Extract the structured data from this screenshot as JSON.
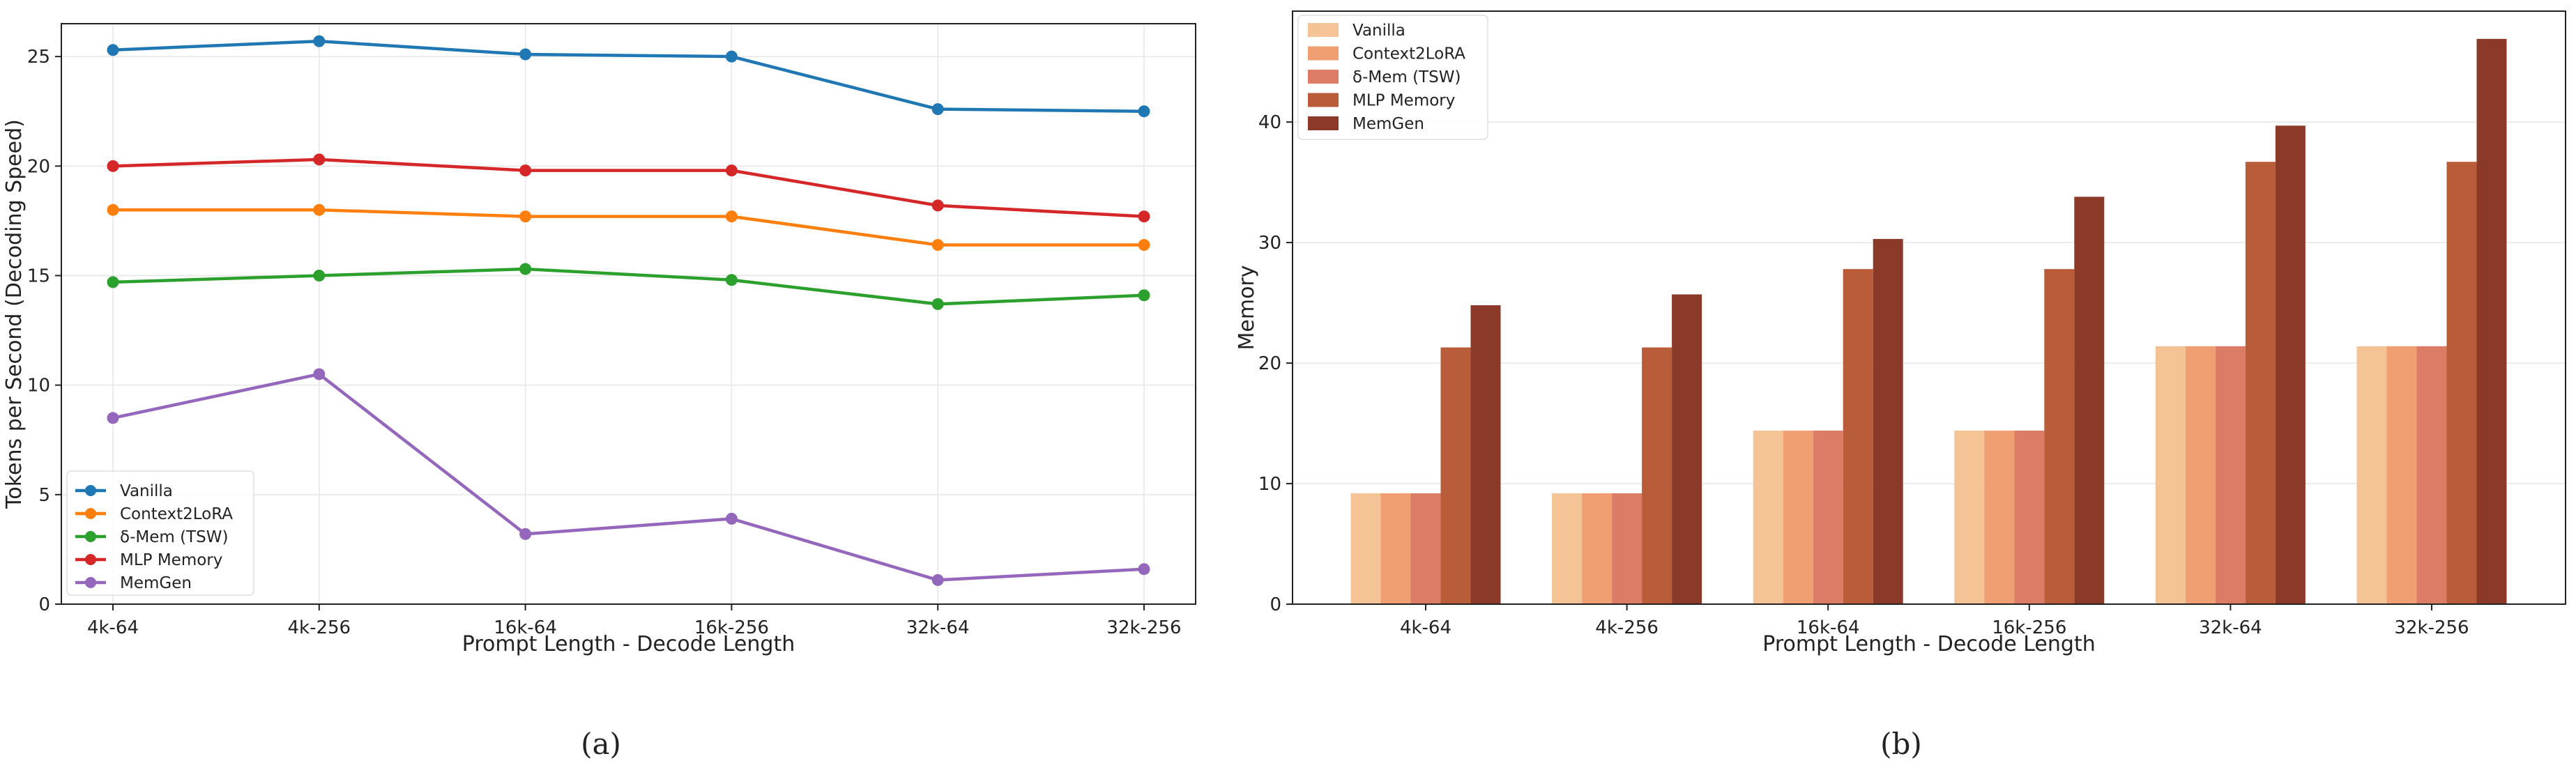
{
  "caption_a": "(a)",
  "caption_b": "(b)",
  "chart_data": [
    {
      "type": "line",
      "xlabel": "Prompt Length - Decode Length",
      "ylabel": "Tokens per Second (Decoding Speed)",
      "categories": [
        "4k-64",
        "4k-256",
        "16k-64",
        "16k-256",
        "32k-64",
        "32k-256"
      ],
      "ylim": [
        0,
        26.5
      ],
      "yticks": [
        0,
        5,
        10,
        15,
        20,
        25
      ],
      "grid": true,
      "legend_position": "lower-left",
      "series": [
        {
          "name": "Vanilla",
          "color": "#1f77b4",
          "values": [
            25.3,
            25.7,
            25.1,
            25.0,
            22.6,
            22.5
          ]
        },
        {
          "name": "Context2LoRA",
          "color": "#ff7f0e",
          "values": [
            18.0,
            18.0,
            17.7,
            17.7,
            16.4,
            16.4
          ]
        },
        {
          "name": "δ-Mem (TSW)",
          "color": "#2ca02c",
          "values": [
            14.7,
            15.0,
            15.3,
            14.8,
            13.7,
            14.1
          ]
        },
        {
          "name": "MLP Memory",
          "color": "#d62728",
          "values": [
            20.0,
            20.3,
            19.8,
            19.8,
            18.2,
            17.7
          ]
        },
        {
          "name": "MemGen",
          "color": "#9467bd",
          "values": [
            8.5,
            10.5,
            3.2,
            3.9,
            1.1,
            1.6
          ]
        }
      ]
    },
    {
      "type": "bar",
      "xlabel": "Prompt Length - Decode Length",
      "ylabel": "Memory",
      "categories": [
        "4k-64",
        "4k-256",
        "16k-64",
        "16k-256",
        "32k-64",
        "32k-256"
      ],
      "ylim": [
        0,
        49.2
      ],
      "yticks": [
        0,
        10,
        20,
        30,
        40
      ],
      "grid": true,
      "legend_position": "upper-left",
      "series": [
        {
          "name": "Vanilla",
          "color": "#f4c497",
          "values": [
            9.2,
            9.2,
            14.4,
            14.4,
            21.4,
            21.4
          ]
        },
        {
          "name": "Context2LoRA",
          "color": "#ef9f72",
          "values": [
            9.2,
            9.2,
            14.4,
            14.4,
            21.4,
            21.4
          ]
        },
        {
          "name": "δ-Mem (TSW)",
          "color": "#dc7b66",
          "values": [
            9.2,
            9.2,
            14.4,
            14.4,
            21.4,
            21.4
          ]
        },
        {
          "name": "MLP Memory",
          "color": "#b95c39",
          "values": [
            21.3,
            21.3,
            27.8,
            27.8,
            36.7,
            36.7
          ]
        },
        {
          "name": "MemGen",
          "color": "#8b3a2a",
          "values": [
            24.8,
            25.7,
            30.3,
            33.8,
            39.7,
            46.9
          ]
        }
      ]
    }
  ]
}
